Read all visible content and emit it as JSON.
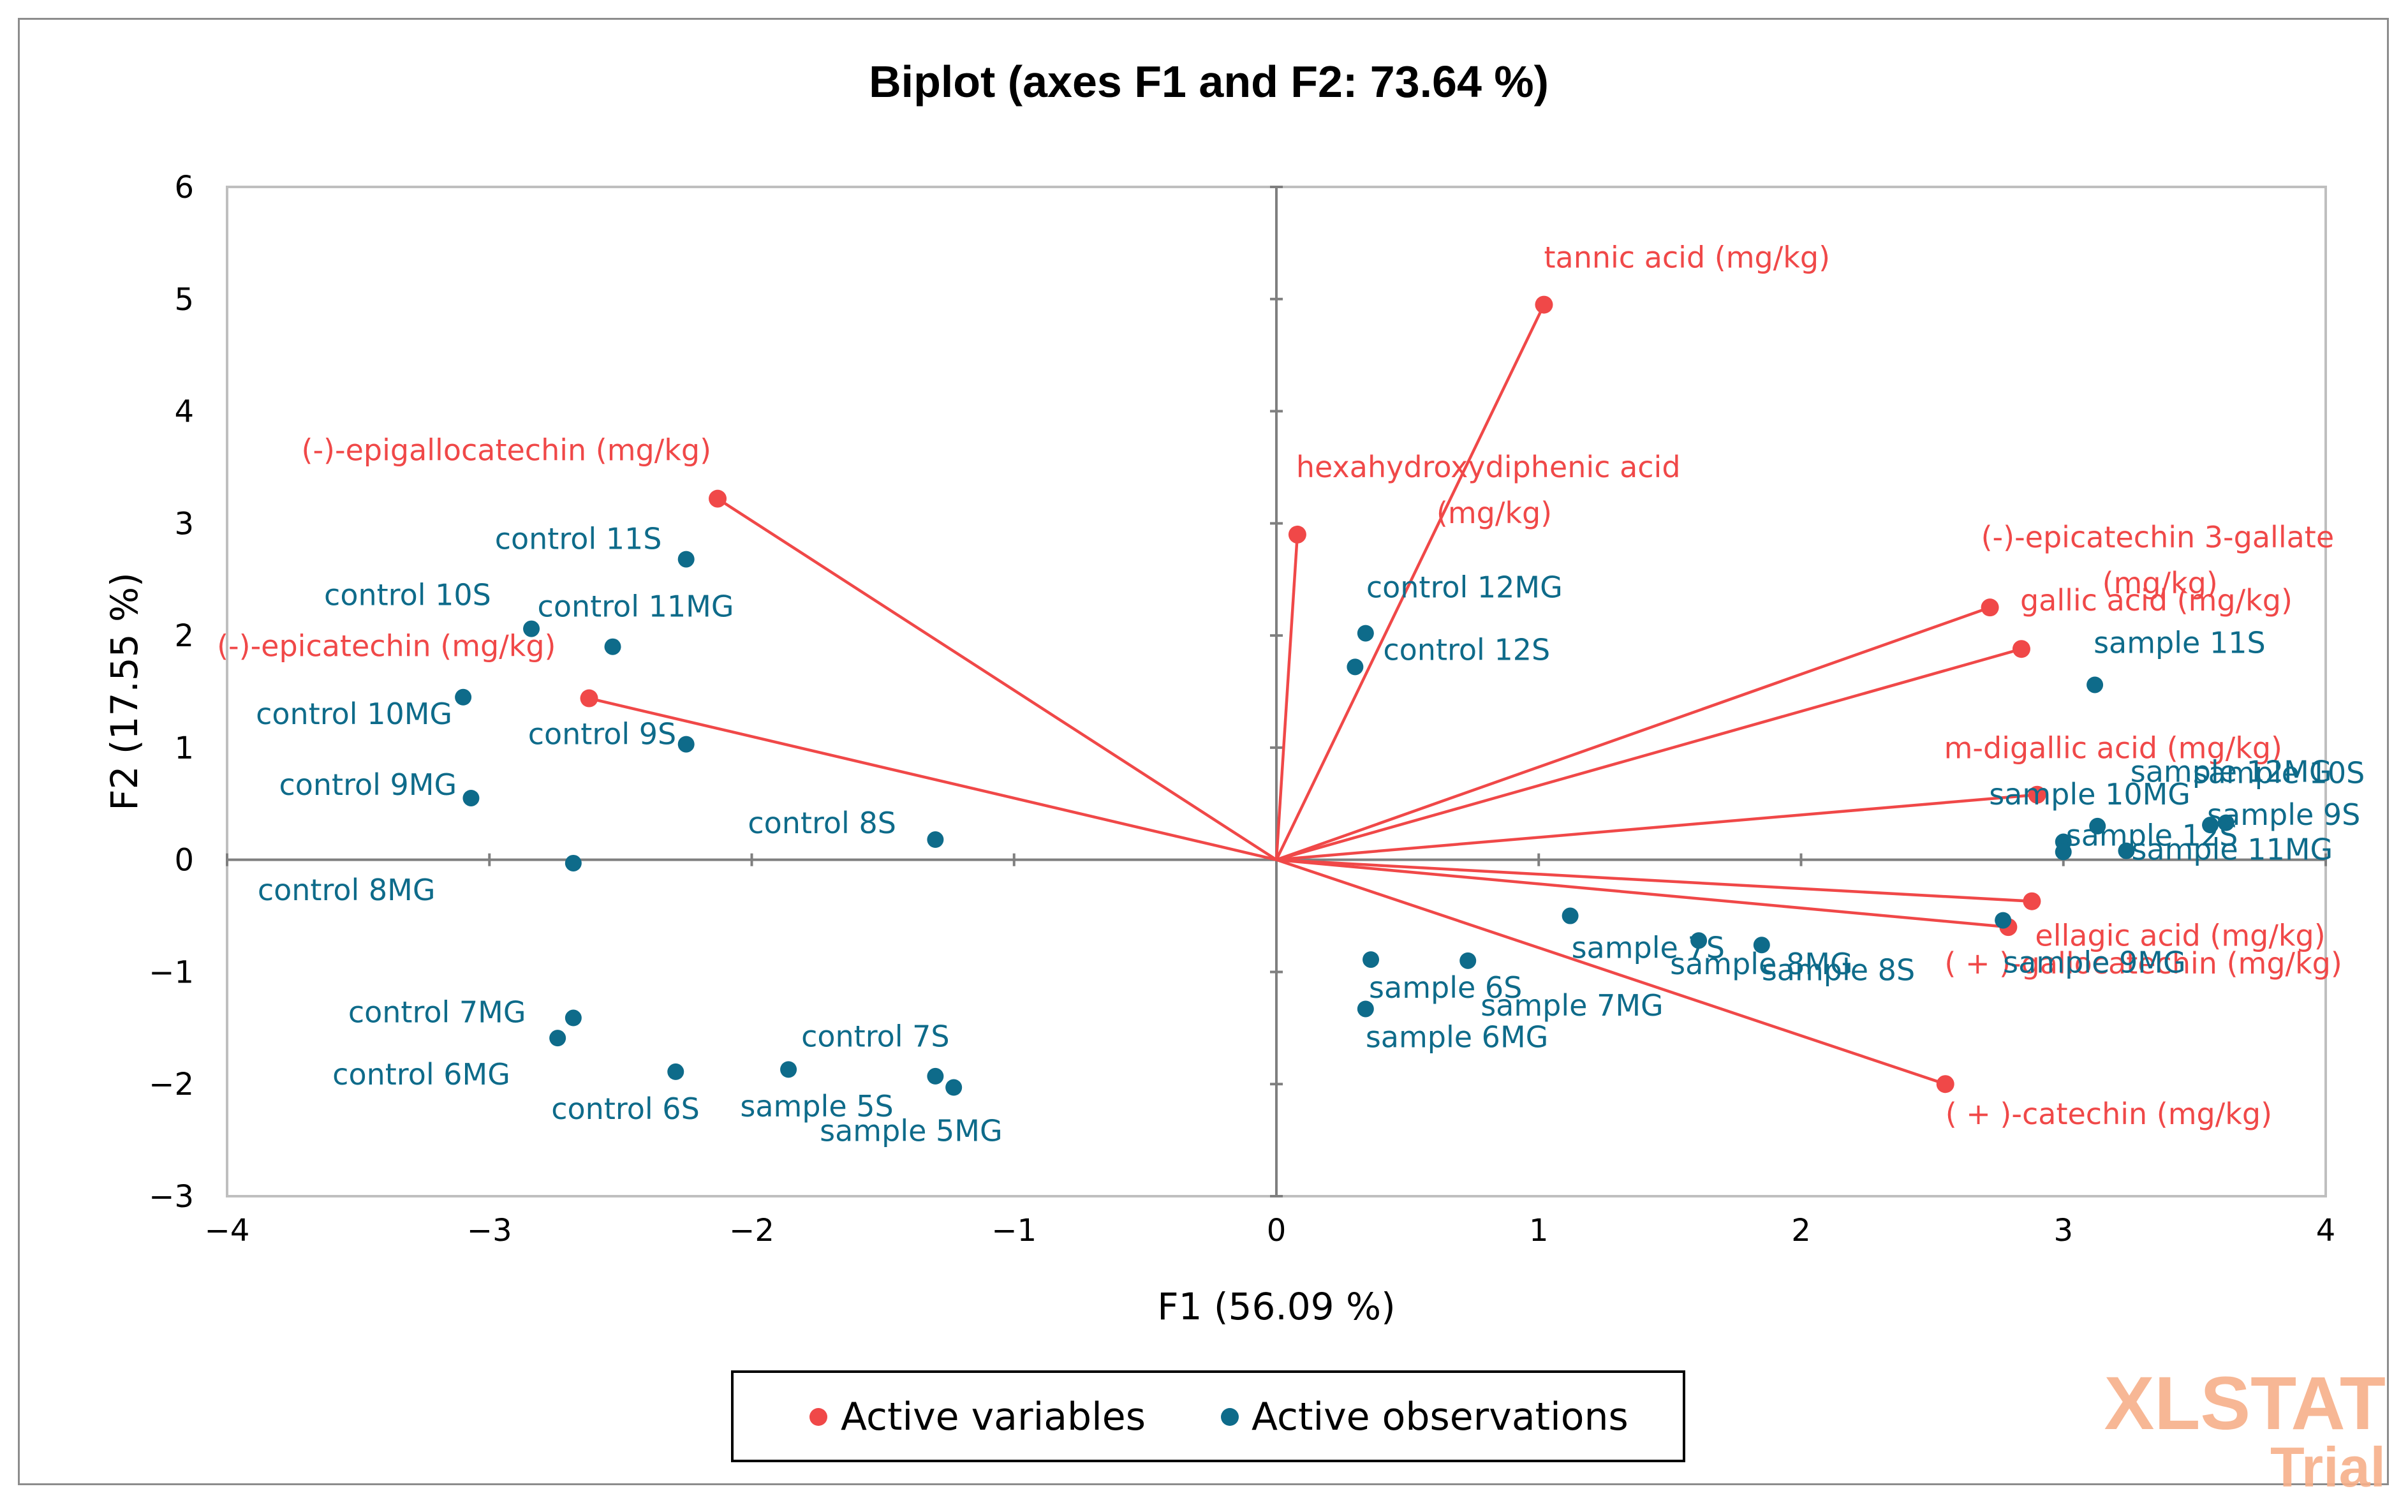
{
  "chart_data": {
    "type": "scatter",
    "title": "Biplot (axes F1 and F2: 73.64 %)",
    "xlabel": "F1 (56.09 %)",
    "ylabel": "F2 (17.55 %)",
    "xlim": [
      -4,
      4
    ],
    "ylim": [
      -3,
      6
    ],
    "xticks": [
      -4,
      -3,
      -2,
      -1,
      0,
      1,
      2,
      3,
      4
    ],
    "yticks": [
      -3,
      -2,
      -1,
      0,
      1,
      2,
      3,
      4,
      5,
      6
    ],
    "grid": false,
    "legend_placement": "bottom",
    "legend": [
      "Active variables",
      "Active observations"
    ],
    "colors": {
      "variables": "#f04848",
      "observations": "#0e6b8a"
    },
    "variables": [
      {
        "name": "tannic acid (mg/kg)",
        "x": 1.02,
        "y": 4.95
      },
      {
        "name": "hexahydroxydiphenic acid (mg/kg)",
        "x": 0.08,
        "y": 2.9
      },
      {
        "name": "(-)-epigallocatechin (mg/kg)",
        "x": -2.13,
        "y": 3.22
      },
      {
        "name": "(-)-epicatechin (mg/kg)",
        "x": -2.62,
        "y": 1.44
      },
      {
        "name": "(-)-epicatechin 3-gallate (mg/kg)",
        "x": 2.72,
        "y": 2.25
      },
      {
        "name": "gallic acid (mg/kg)",
        "x": 2.84,
        "y": 1.88
      },
      {
        "name": "m-digallic acid (mg/kg)",
        "x": 2.9,
        "y": 0.58
      },
      {
        "name": "ellagic acid (mg/kg)",
        "x": 2.88,
        "y": -0.37
      },
      {
        "name": "( + )-gallocatechin (mg/kg)",
        "x": 2.79,
        "y": -0.6
      },
      {
        "name": "( + )-catechin (mg/kg)",
        "x": 2.55,
        "y": -2.0
      }
    ],
    "observations": [
      {
        "name": "control 11S",
        "x": -2.25,
        "y": 2.68
      },
      {
        "name": "control 10S",
        "x": -2.84,
        "y": 2.06
      },
      {
        "name": "control 11MG",
        "x": -2.53,
        "y": 1.9
      },
      {
        "name": "control 10MG",
        "x": -3.1,
        "y": 1.45
      },
      {
        "name": "control 9S",
        "x": -2.25,
        "y": 1.03
      },
      {
        "name": "control 9MG",
        "x": -3.07,
        "y": 0.55
      },
      {
        "name": "control 8S",
        "x": -1.3,
        "y": 0.18
      },
      {
        "name": "control 8MG",
        "x": -2.68,
        "y": -0.03
      },
      {
        "name": "control 7MG",
        "x": -2.68,
        "y": -1.41
      },
      {
        "name": "control 6MG",
        "x": -2.74,
        "y": -1.59
      },
      {
        "name": "control 7S",
        "x": -1.86,
        "y": -1.87
      },
      {
        "name": "control 6S",
        "x": -2.29,
        "y": -1.89
      },
      {
        "name": "sample 5S",
        "x": -1.3,
        "y": -1.93
      },
      {
        "name": "sample 5MG",
        "x": -1.23,
        "y": -2.03
      },
      {
        "name": "control 12MG",
        "x": 0.34,
        "y": 2.02
      },
      {
        "name": "control 12S",
        "x": 0.3,
        "y": 1.72
      },
      {
        "name": "sample 6S",
        "x": 0.36,
        "y": -0.89
      },
      {
        "name": "sample 6MG",
        "x": 0.34,
        "y": -1.33
      },
      {
        "name": "sample 7MG",
        "x": 0.73,
        "y": -0.9
      },
      {
        "name": "sample 7S",
        "x": 1.12,
        "y": -0.5
      },
      {
        "name": "sample 8MG",
        "x": 1.61,
        "y": -0.72
      },
      {
        "name": "sample 8S",
        "x": 1.85,
        "y": -0.76
      },
      {
        "name": "sample 11S",
        "x": 3.12,
        "y": 1.56
      },
      {
        "name": "sample 12MG",
        "x": 3.0,
        "y": 0.16
      },
      {
        "name": "sample 10MG",
        "x": 3.13,
        "y": 0.3
      },
      {
        "name": "sample 12S",
        "x": 3.0,
        "y": 0.07
      },
      {
        "name": "sample 10S",
        "x": 3.62,
        "y": 0.33
      },
      {
        "name": "sample 9S",
        "x": 3.56,
        "y": 0.31
      },
      {
        "name": "sample 11MG",
        "x": 3.24,
        "y": 0.08
      },
      {
        "name": "sample 9MG",
        "x": 2.77,
        "y": -0.54
      }
    ]
  },
  "watermark": {
    "line1": "XLSTAT",
    "line2": "Trial"
  }
}
